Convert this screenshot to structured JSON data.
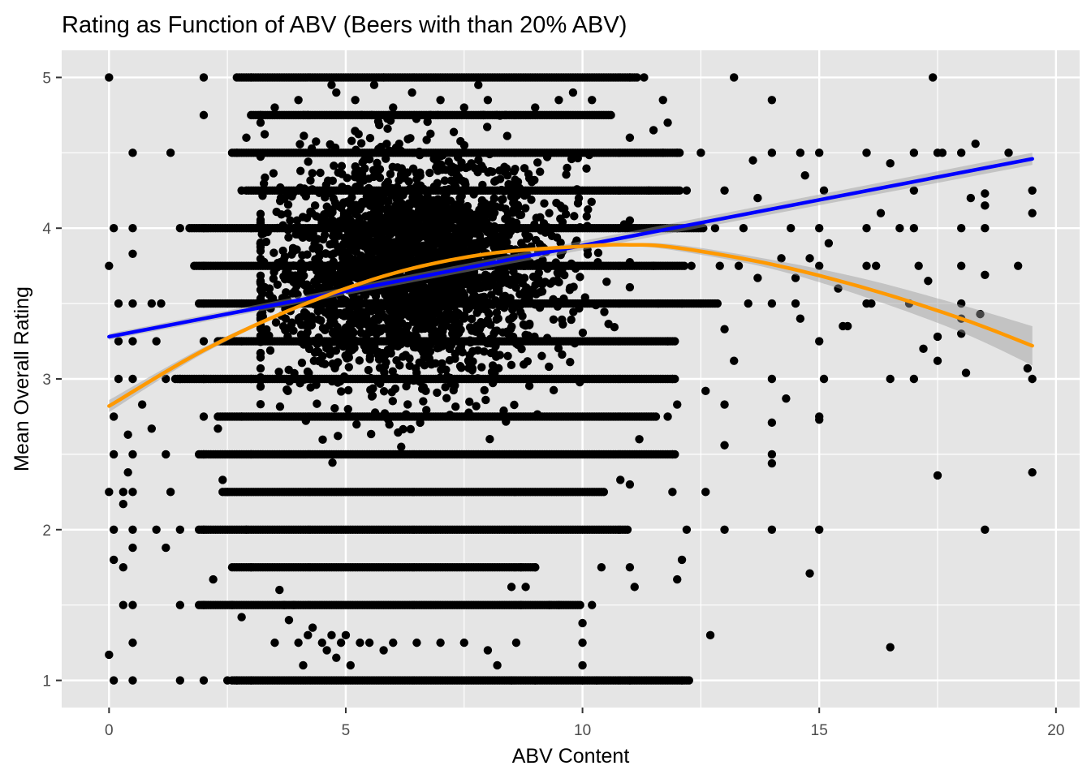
{
  "chart_data": {
    "type": "scatter",
    "title": "Rating as Function of ABV (Beers with than 20% ABV)",
    "xlabel": "ABV Content",
    "ylabel": "Mean Overall Rating",
    "xlim": [
      -1,
      20.5
    ],
    "ylim": [
      0.82,
      5.18
    ],
    "x_ticks": [
      0,
      5,
      10,
      15,
      20
    ],
    "y_ticks": [
      1,
      2,
      3,
      4,
      5
    ],
    "grid": true,
    "legend": "none",
    "point_color": "#000000",
    "panel_background": "#e5e5e5",
    "grid_color": "#ffffff",
    "points": [
      [
        0,
        5
      ],
      [
        0,
        3.75
      ],
      [
        0,
        1.17
      ],
      [
        0,
        2.25
      ],
      [
        0.1,
        4
      ],
      [
        0.1,
        1
      ],
      [
        0.1,
        1.8
      ],
      [
        0.1,
        2.5
      ],
      [
        0.1,
        2.75
      ],
      [
        0.1,
        2
      ],
      [
        0.2,
        3.5
      ],
      [
        0.2,
        3.25
      ],
      [
        0.2,
        3
      ],
      [
        0.5,
        4
      ],
      [
        0.5,
        3.5
      ],
      [
        0.5,
        3.25
      ],
      [
        0.5,
        3
      ],
      [
        0.5,
        2.5
      ],
      [
        0.5,
        2
      ],
      [
        0.5,
        1.5
      ],
      [
        0.5,
        1.25
      ],
      [
        0.5,
        1
      ],
      [
        0.5,
        4.5
      ],
      [
        0.5,
        3.83
      ],
      [
        0.5,
        1.88
      ],
      [
        0.5,
        2.25
      ],
      [
        0.4,
        2.63
      ],
      [
        0.4,
        2.38
      ],
      [
        0.3,
        2.25
      ],
      [
        0.3,
        1.75
      ],
      [
        0.3,
        1.5
      ],
      [
        0.3,
        2.17
      ],
      [
        0.7,
        2.83
      ],
      [
        0.9,
        2.67
      ],
      [
        0.9,
        3.5
      ],
      [
        1.0,
        2.0
      ],
      [
        1.0,
        3.25
      ],
      [
        1.1,
        3.5
      ],
      [
        1.2,
        3.0
      ],
      [
        1.2,
        2.5
      ],
      [
        1.2,
        1.88
      ],
      [
        1.3,
        4.5
      ],
      [
        1.3,
        2.25
      ],
      [
        1.5,
        2.0
      ],
      [
        1.5,
        1.0
      ],
      [
        1.5,
        1.5
      ],
      [
        1.5,
        3.0
      ],
      [
        1.5,
        4.0
      ],
      [
        2,
        5
      ],
      [
        2,
        4.75
      ],
      [
        2,
        4.0
      ],
      [
        2,
        3.75
      ],
      [
        2,
        3.5
      ],
      [
        2,
        3.25
      ],
      [
        2,
        3.0
      ],
      [
        2,
        2.75
      ],
      [
        2,
        2.5
      ],
      [
        2,
        2.0
      ],
      [
        2,
        1.5
      ],
      [
        2,
        1.0
      ],
      [
        2.2,
        1.67
      ],
      [
        2.3,
        2.67
      ],
      [
        2.4,
        2.33
      ],
      [
        2.5,
        3.5
      ],
      [
        2.5,
        2.25
      ],
      [
        2.6,
        1.5
      ],
      [
        2.7,
        1.0
      ],
      [
        2.8,
        1.42
      ],
      [
        2.7,
        4.5
      ],
      [
        2.8,
        4.25
      ],
      [
        2.8,
        3.5
      ],
      [
        2.8,
        3.25
      ],
      [
        2.8,
        2.75
      ],
      [
        2.9,
        2.0
      ],
      [
        3.0,
        5
      ],
      [
        3.0,
        4.0
      ],
      [
        3.0,
        3.0
      ],
      [
        3.0,
        2.5
      ],
      [
        3.0,
        1.75
      ],
      [
        11,
        5
      ],
      [
        11.3,
        5
      ],
      [
        11.1,
        4.0
      ],
      [
        11.4,
        4.25
      ],
      [
        11.5,
        3.75
      ],
      [
        11.6,
        3.5
      ],
      [
        11.7,
        4.5
      ],
      [
        11.8,
        3.25
      ],
      [
        11.9,
        3.0
      ],
      [
        12.0,
        4.5
      ],
      [
        12.0,
        4.0
      ],
      [
        12.1,
        3.5
      ],
      [
        12.2,
        4.25
      ],
      [
        12.3,
        3.75
      ],
      [
        12.0,
        2.83
      ],
      [
        11.8,
        2.75
      ],
      [
        11.9,
        2.5
      ],
      [
        11.9,
        2.25
      ],
      [
        11.2,
        2.6
      ],
      [
        11.0,
        2.3
      ],
      [
        10.8,
        2.33
      ],
      [
        11.0,
        1.75
      ],
      [
        11.1,
        1.62
      ],
      [
        11.0,
        1.0
      ],
      [
        11.0,
        4.6
      ],
      [
        11.5,
        4.65
      ],
      [
        11.8,
        4.7
      ],
      [
        11.7,
        4.85
      ],
      [
        12.0,
        1.67
      ],
      [
        12.1,
        1.8
      ],
      [
        12.1,
        1.0
      ],
      [
        12.2,
        2.0
      ],
      [
        12.5,
        4.5
      ],
      [
        12.5,
        3.5
      ],
      [
        12.6,
        2.92
      ],
      [
        12.6,
        2.25
      ],
      [
        12.7,
        1.3
      ],
      [
        12.8,
        4.0
      ],
      [
        12.9,
        3.75
      ],
      [
        13.0,
        4.25
      ],
      [
        13.0,
        3.33
      ],
      [
        13.0,
        2.83
      ],
      [
        13.0,
        2.56
      ],
      [
        13.0,
        2.0
      ],
      [
        13.2,
        3.12
      ],
      [
        13.2,
        5
      ],
      [
        13.3,
        3.75
      ],
      [
        13.4,
        4.0
      ],
      [
        13.5,
        3.5
      ],
      [
        13.6,
        4.45
      ],
      [
        13.7,
        3.67
      ],
      [
        13.7,
        4.2
      ],
      [
        14.0,
        4.85
      ],
      [
        14.0,
        4.5
      ],
      [
        14.0,
        3.5
      ],
      [
        14.0,
        3.0
      ],
      [
        14.0,
        2.71
      ],
      [
        14.0,
        2.5
      ],
      [
        14.0,
        2.44
      ],
      [
        14.0,
        2.0
      ],
      [
        14.2,
        3.8
      ],
      [
        14.3,
        2.87
      ],
      [
        14.4,
        4.0
      ],
      [
        14.5,
        3.67
      ],
      [
        14.5,
        3.5
      ],
      [
        14.6,
        4.5
      ],
      [
        14.6,
        3.4
      ],
      [
        14.7,
        4.35
      ],
      [
        14.8,
        3.8
      ],
      [
        15.0,
        4.5
      ],
      [
        15.0,
        4.0
      ],
      [
        15.0,
        3.75
      ],
      [
        15.0,
        3.25
      ],
      [
        15.0,
        2.75
      ],
      [
        15.0,
        2.73
      ],
      [
        15.0,
        2.0
      ],
      [
        15.1,
        4.25
      ],
      [
        15.2,
        3.9
      ],
      [
        15.4,
        3.6
      ],
      [
        15.5,
        3.35
      ],
      [
        15.6,
        3.35
      ],
      [
        14.8,
        1.71
      ],
      [
        15.1,
        3.0
      ],
      [
        16,
        4.5
      ],
      [
        16,
        4.0
      ],
      [
        16,
        3.75
      ],
      [
        16,
        3.5
      ],
      [
        16.1,
        3.5
      ],
      [
        16.2,
        3.75
      ],
      [
        16.3,
        4.1
      ],
      [
        16.5,
        4.43
      ],
      [
        16.5,
        3.0
      ],
      [
        16.5,
        1.22
      ],
      [
        16.7,
        4.0
      ],
      [
        16.9,
        3.5
      ],
      [
        17.0,
        4.5
      ],
      [
        17.0,
        4.25
      ],
      [
        17.0,
        3.0
      ],
      [
        17.0,
        4.0
      ],
      [
        17.1,
        3.75
      ],
      [
        17.2,
        3.2
      ],
      [
        17.3,
        3.65
      ],
      [
        17.4,
        5
      ],
      [
        17.5,
        4.5
      ],
      [
        17.5,
        3.28
      ],
      [
        17.5,
        3.12
      ],
      [
        17.5,
        2.36
      ],
      [
        17.6,
        4.5
      ],
      [
        18.0,
        4.5
      ],
      [
        18.0,
        4.0
      ],
      [
        18.0,
        3.75
      ],
      [
        18.0,
        3.5
      ],
      [
        18.0,
        3.3
      ],
      [
        18.0,
        3.4
      ],
      [
        18.1,
        3.04
      ],
      [
        18.2,
        4.2
      ],
      [
        18.3,
        4.56
      ],
      [
        18.4,
        3.43
      ],
      [
        18.5,
        4.23
      ],
      [
        18.5,
        4.0
      ],
      [
        18.5,
        4.15
      ],
      [
        18.5,
        3.69
      ],
      [
        18.5,
        2.0
      ],
      [
        19.0,
        4.5
      ],
      [
        19.2,
        3.75
      ],
      [
        19.4,
        3.07
      ],
      [
        19.5,
        4.25
      ],
      [
        19.5,
        4.1
      ],
      [
        19.5,
        3.0
      ],
      [
        19.5,
        2.38
      ],
      [
        3.5,
        1.25
      ],
      [
        3.6,
        1.6
      ],
      [
        3.7,
        1.5
      ],
      [
        3.8,
        1.4
      ],
      [
        3.9,
        1.5
      ],
      [
        4.0,
        1.25
      ],
      [
        4.1,
        1.1
      ],
      [
        4.2,
        1.3
      ],
      [
        4.3,
        1.35
      ],
      [
        4.5,
        1.25
      ],
      [
        4.6,
        1.2
      ],
      [
        4.7,
        1.3
      ],
      [
        4.8,
        1.15
      ],
      [
        4.9,
        1.25
      ],
      [
        5.0,
        1.3
      ],
      [
        5.1,
        1.1
      ],
      [
        5.3,
        1.25
      ],
      [
        5.5,
        1.25
      ],
      [
        5.8,
        1.2
      ],
      [
        6.0,
        1.25
      ],
      [
        6.5,
        1.25
      ],
      [
        7.0,
        1.25
      ],
      [
        7.5,
        1.25
      ],
      [
        8.0,
        1.2
      ],
      [
        8.2,
        1.1
      ],
      [
        8.5,
        1.0
      ],
      [
        8.6,
        1.25
      ],
      [
        9.0,
        1.0
      ],
      [
        10.0,
        1.25
      ],
      [
        10.0,
        1.1
      ],
      [
        10.3,
        1.0
      ],
      [
        10.2,
        1.5
      ],
      [
        10.4,
        1.75
      ],
      [
        4.8,
        4.9
      ],
      [
        5.2,
        4.85
      ],
      [
        6.0,
        4.8
      ],
      [
        6.4,
        4.9
      ],
      [
        7.0,
        4.85
      ],
      [
        7.5,
        4.8
      ],
      [
        8.0,
        4.85
      ],
      [
        9.0,
        4.8
      ],
      [
        9.5,
        4.85
      ],
      [
        4.0,
        4.85
      ],
      [
        3.5,
        4.8
      ],
      [
        3.2,
        4.7
      ],
      [
        2.9,
        4.6
      ],
      [
        10.2,
        4.85
      ],
      [
        10.6,
        4.75
      ],
      [
        9.8,
        4.9
      ],
      [
        7.8,
        4.95
      ],
      [
        5.6,
        4.95
      ],
      [
        8.5,
        1.62
      ],
      [
        8.7,
        1.5
      ],
      [
        8.8,
        1.62
      ],
      [
        8.7,
        1.75
      ],
      [
        9.3,
        1.5
      ],
      [
        9.0,
        1.75
      ],
      [
        9.5,
        1.5
      ],
      [
        10.0,
        1.38
      ],
      [
        10.0,
        1.0
      ],
      [
        4.7,
        4.95
      ],
      [
        5.8,
        5.0
      ],
      [
        3.0,
        1.0
      ],
      [
        2.5,
        1.0
      ]
    ],
    "bands": [
      {
        "y": 5.0,
        "x_start": 2.7,
        "x_end": 11.2,
        "note_free": true
      },
      {
        "y": 4.75,
        "x_start": 3.0,
        "x_end": 10.6
      },
      {
        "y": 4.5,
        "x_start": 2.6,
        "x_end": 12.1
      },
      {
        "y": 4.25,
        "x_start": 2.9,
        "x_end": 12.1
      },
      {
        "y": 4.0,
        "x_start": 1.7,
        "x_end": 12.6
      },
      {
        "y": 3.75,
        "x_start": 1.8,
        "x_end": 12.2
      },
      {
        "y": 3.5,
        "x_start": 1.9,
        "x_end": 12.9
      },
      {
        "y": 3.25,
        "x_start": 2.3,
        "x_end": 12.0
      },
      {
        "y": 3.0,
        "x_start": 1.4,
        "x_end": 12.0
      },
      {
        "y": 2.75,
        "x_start": 2.3,
        "x_end": 11.6
      },
      {
        "y": 2.5,
        "x_start": 1.9,
        "x_end": 12.0
      },
      {
        "y": 2.25,
        "x_start": 2.4,
        "x_end": 10.5
      },
      {
        "y": 2.0,
        "x_start": 1.9,
        "x_end": 11.0
      },
      {
        "y": 1.75,
        "x_start": 2.6,
        "x_end": 9.0
      },
      {
        "y": 1.5,
        "x_start": 1.9,
        "x_end": 10.0
      },
      {
        "y": 1.0,
        "x_start": 2.6,
        "x_end": 12.3
      }
    ],
    "blob": {
      "x_center": 6.4,
      "y_center": 3.75,
      "x_spread": 2.7,
      "y_spread": 0.62,
      "count": 2600
    },
    "fits": [
      {
        "method": "linear",
        "color": "#0000ff",
        "x": [
          0,
          19.5
        ],
        "y": [
          3.28,
          4.46
        ],
        "se_upper": [
          3.3,
          4.5
        ],
        "se_lower": [
          3.26,
          4.42
        ]
      },
      {
        "method": "quadratic",
        "color": "#ff9900",
        "x": [
          0,
          2,
          4,
          6,
          8,
          10,
          11,
          12,
          14,
          16,
          18,
          19.5
        ],
        "y": [
          2.82,
          3.19,
          3.48,
          3.7,
          3.83,
          3.88,
          3.89,
          3.87,
          3.76,
          3.6,
          3.4,
          3.22
        ],
        "se_upper": [
          2.86,
          3.21,
          3.49,
          3.71,
          3.84,
          3.89,
          3.9,
          3.89,
          3.79,
          3.66,
          3.49,
          3.35
        ],
        "se_lower": [
          2.78,
          3.17,
          3.47,
          3.69,
          3.82,
          3.87,
          3.88,
          3.85,
          3.73,
          3.54,
          3.31,
          3.09
        ]
      }
    ]
  }
}
